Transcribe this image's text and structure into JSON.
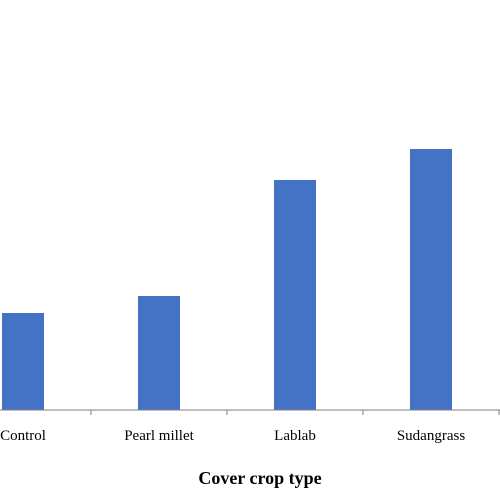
{
  "chart_data": {
    "type": "bar",
    "categories": [
      "Control",
      "Pearl millet",
      "Lablab",
      "Sudangrass"
    ],
    "values": [
      97,
      114,
      230,
      261
    ],
    "xlabel": "Cover crop type",
    "ylabel": "",
    "ylim": [
      0,
      410
    ],
    "grid": false,
    "legend": "none",
    "colors": {
      "bar": "#4472C4",
      "axis": "#7f7f7f",
      "text": "#000000"
    }
  }
}
